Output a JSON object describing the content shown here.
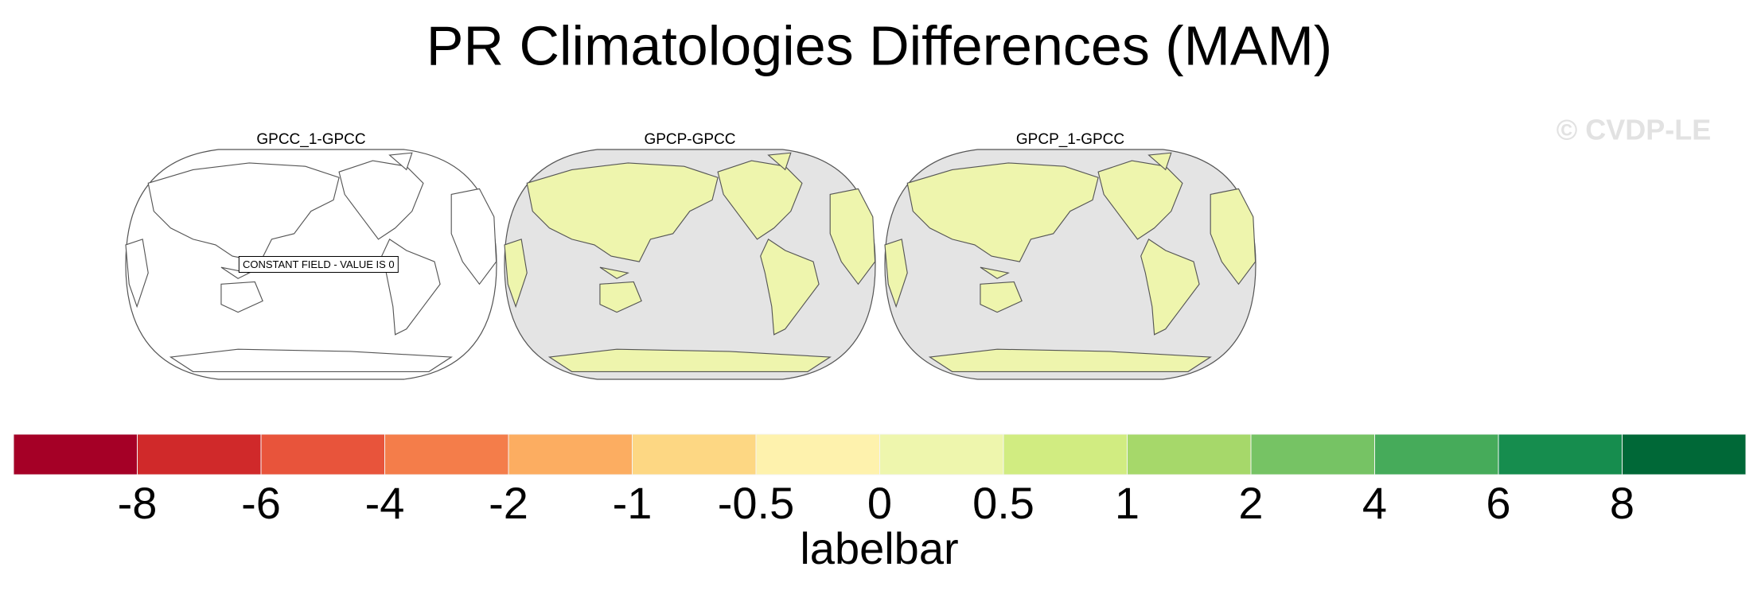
{
  "title": "PR Climatologies Differences (MAM)",
  "watermark": "© CVDP-LE",
  "panels": [
    {
      "title": "GPCC_1-GPCC",
      "annotation": "CONSTANT FIELD - VALUE IS 0",
      "fill": "#ffffff",
      "land": "#ffffff"
    },
    {
      "title": "GPCP-GPCC",
      "fill": "#e4e4e4",
      "land": "#eef5ad"
    },
    {
      "title": "GPCP_1-GPCC",
      "fill": "#e4e4e4",
      "land": "#eef5ad"
    }
  ],
  "colorbar": {
    "label": "labelbar",
    "colors": [
      "#a50026",
      "#d0292a",
      "#e8543b",
      "#f47d4a",
      "#fcad61",
      "#fdd783",
      "#fef2ad",
      "#eef6ad",
      "#d1ec81",
      "#a6d86a",
      "#76c364",
      "#46ab5a",
      "#168d4e",
      "#006837"
    ],
    "levels": [
      -8,
      -6,
      -4,
      -2,
      -1,
      -0.5,
      0,
      0.5,
      1,
      2,
      4,
      6,
      8
    ]
  }
}
